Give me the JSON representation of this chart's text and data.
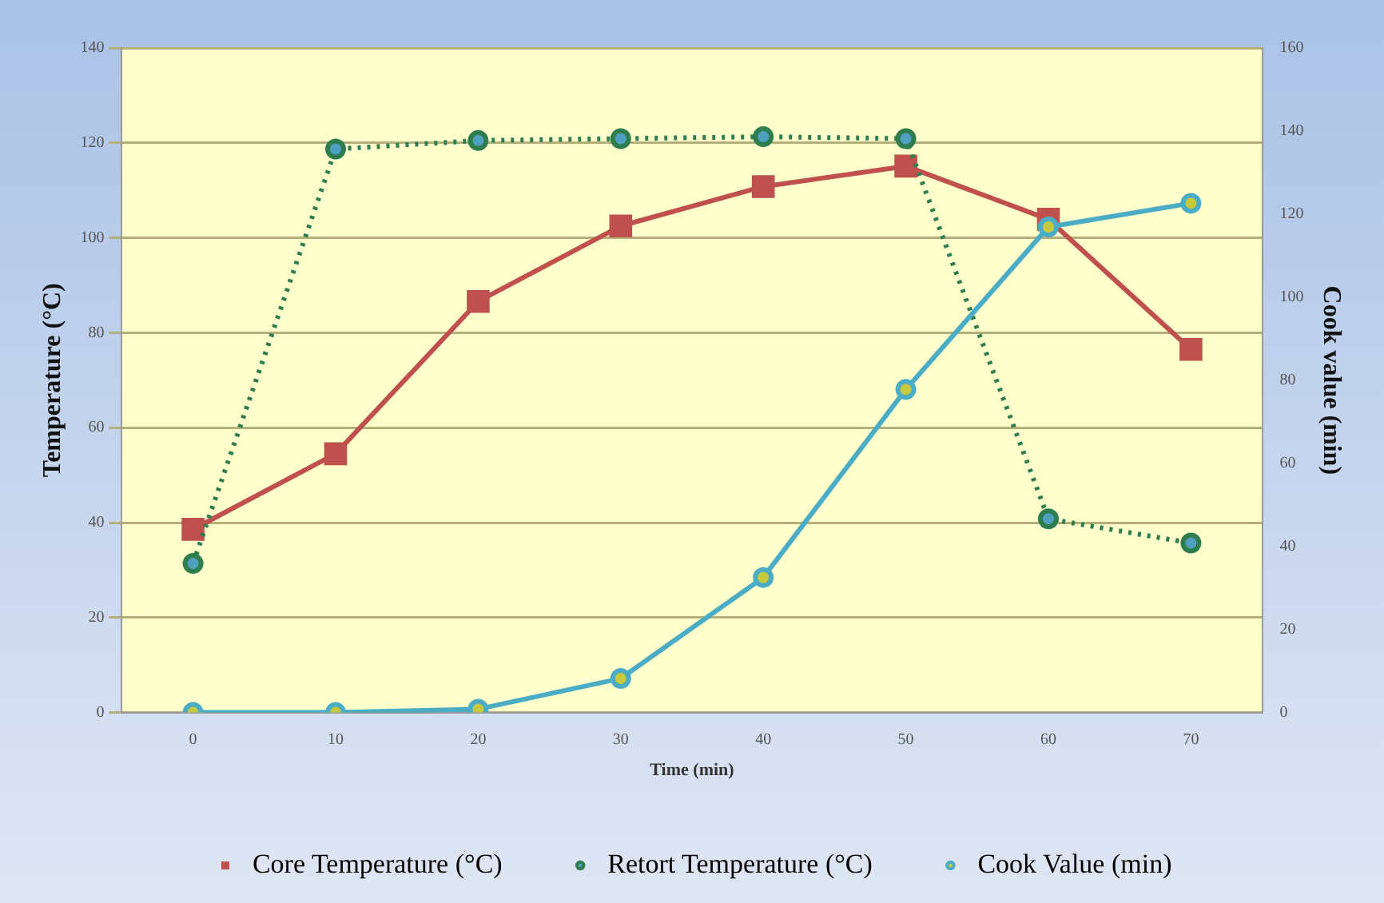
{
  "chart_data": {
    "type": "line",
    "xlabel": "Time (min)",
    "ylabel": "Temperature (°C)",
    "y2label": "Cook value (min)",
    "categories": [
      "0",
      "10",
      "20",
      "30",
      "40",
      "50",
      "60",
      "70"
    ],
    "series": [
      {
        "name": "Core Temperature (°C)",
        "color": "#c0504d",
        "marker": "square",
        "line_style": "solid",
        "values": [
          38.6,
          54.5,
          86.6,
          102.5,
          110.8,
          115.1,
          103.9,
          76.5
        ]
      },
      {
        "name": "Retort Temperature (°C)",
        "color": "#2e7d4f",
        "marker": "circle",
        "line_style": "dotted",
        "values": [
          31.4,
          118.7,
          120.5,
          120.9,
          121.3,
          120.9,
          40.8,
          35.7
        ]
      },
      {
        "name": "Cook Value (min)",
        "color": "#4bacc6",
        "marker": "circle",
        "line_style": "solid",
        "axis": "y2",
        "values": [
          0,
          0,
          0.8,
          8.2,
          32.5,
          77.8,
          116.9,
          122.6
        ]
      }
    ],
    "ylim": [
      0,
      140
    ],
    "yticks": [
      0,
      20,
      40,
      60,
      80,
      100,
      120,
      140
    ],
    "y2lim": [
      0,
      160
    ],
    "y2ticks": [
      0,
      20,
      40,
      60,
      80,
      100,
      120,
      140,
      160
    ],
    "grid": "y",
    "legend": "bottom"
  }
}
